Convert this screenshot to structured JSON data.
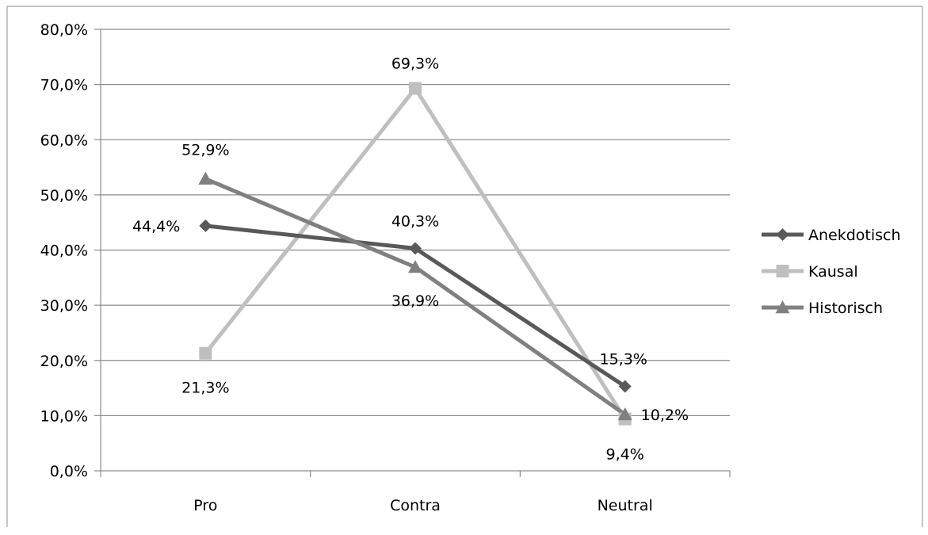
{
  "chart_data": {
    "type": "line",
    "categories": [
      "Pro",
      "Contra",
      "Neutral"
    ],
    "ylim": [
      0,
      80
    ],
    "ytick_step": 10,
    "ytick_labels": [
      "0,0%",
      "10,0%",
      "20,0%",
      "30,0%",
      "40,0%",
      "50,0%",
      "60,0%",
      "70,0%",
      "80,0%"
    ],
    "grid": true,
    "legend_position": "right",
    "series": [
      {
        "name": "Anekdotisch",
        "marker": "diamond",
        "color": "#595959",
        "values": [
          44.4,
          40.3,
          15.3
        ],
        "labels": [
          "44,4%",
          "40,3%",
          "15,3%"
        ]
      },
      {
        "name": "Kausal",
        "marker": "square",
        "color": "#bfbfbf",
        "values": [
          21.3,
          69.3,
          9.4
        ],
        "labels": [
          "21,3%",
          "69,3%",
          "9,4%"
        ]
      },
      {
        "name": "Historisch",
        "marker": "triangle",
        "color": "#808080",
        "values": [
          52.9,
          36.9,
          10.2
        ],
        "labels": [
          "52,9%",
          "36,9%",
          "10,2%"
        ]
      }
    ]
  }
}
